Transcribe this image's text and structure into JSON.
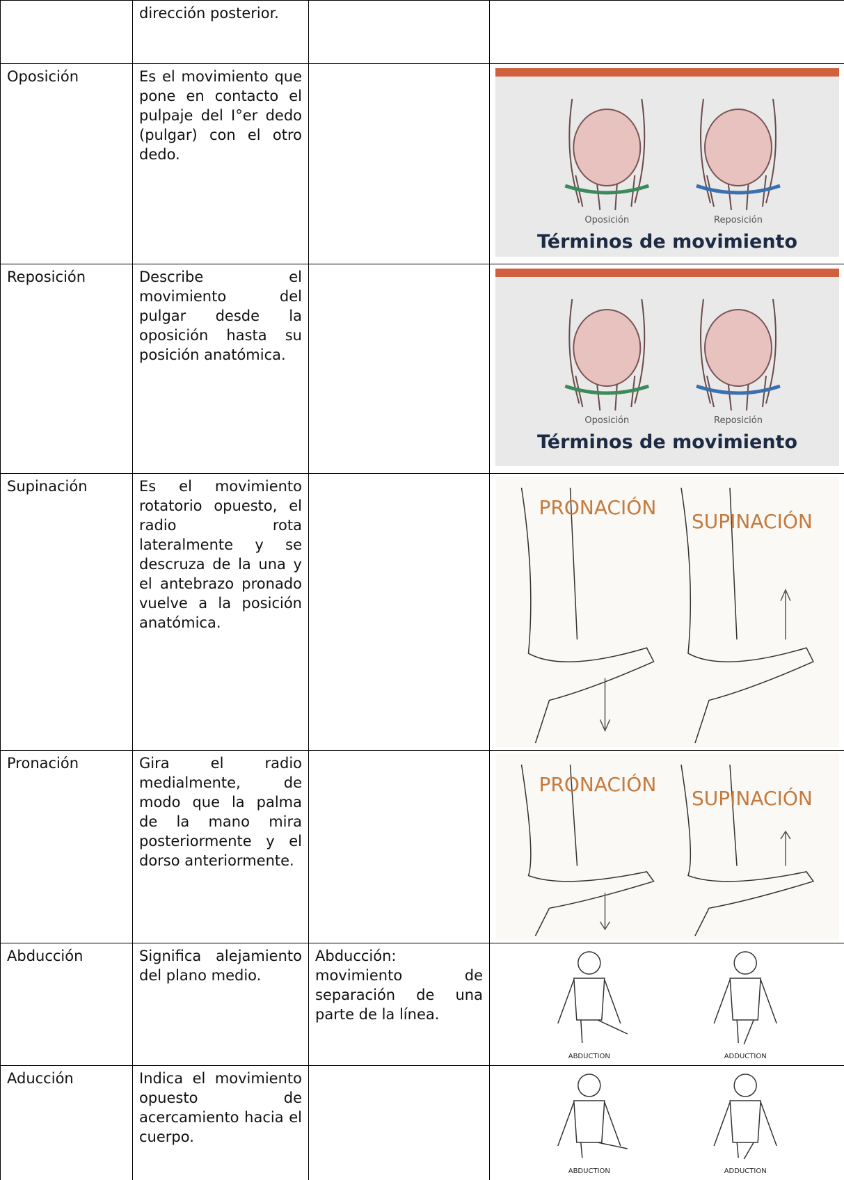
{
  "table": {
    "rows": [
      {
        "description": "dirección posterior."
      },
      {
        "term": "Oposición",
        "description": "Es el movimiento que pone en contacto el pulpaje del I°er dedo (pulgar) con el otro dedo.",
        "image": {
          "kind": "hand",
          "labels": [
            "Oposición",
            "Reposición"
          ],
          "title": "Términos de movimiento"
        }
      },
      {
        "term": "Reposición",
        "description": "Describe el movimiento del pulgar desde la oposición hasta su posición anatómica.",
        "image": {
          "kind": "hand",
          "labels": [
            "Oposición",
            "Reposición"
          ],
          "title": "Términos de movimiento"
        }
      },
      {
        "term": "Supinación",
        "description": "Es el movimiento rotatorio opuesto, el radio rota lateralmente y se descruza de la una y el antebrazo pronado vuelve a la posición anatómica.",
        "image": {
          "kind": "arm",
          "labels": [
            "PRONACIÓN",
            "SUPINACIÓN"
          ]
        }
      },
      {
        "term": "Pronación",
        "description": "Gira el radio medialmente, de modo que la palma de la mano mira posteriormente y el dorso anteriormente.",
        "image": {
          "kind": "arm",
          "labels": [
            "PRONACIÓN",
            "SUPINACIÓN"
          ]
        }
      },
      {
        "term": "Abducción",
        "description": "Significa alejamiento del plano medio.",
        "note": "Abducción: movimiento de separación de una parte de la línea.",
        "image": {
          "kind": "body",
          "labels": [
            "ABDUCTION",
            "ADDUCTION"
          ]
        }
      },
      {
        "term": "Aducción",
        "description": "Indica el movimiento opuesto de acercamiento hacia el cuerpo.",
        "image": {
          "kind": "body",
          "labels": [
            "ABDUCTION",
            "ADDUCTION"
          ]
        }
      }
    ]
  }
}
